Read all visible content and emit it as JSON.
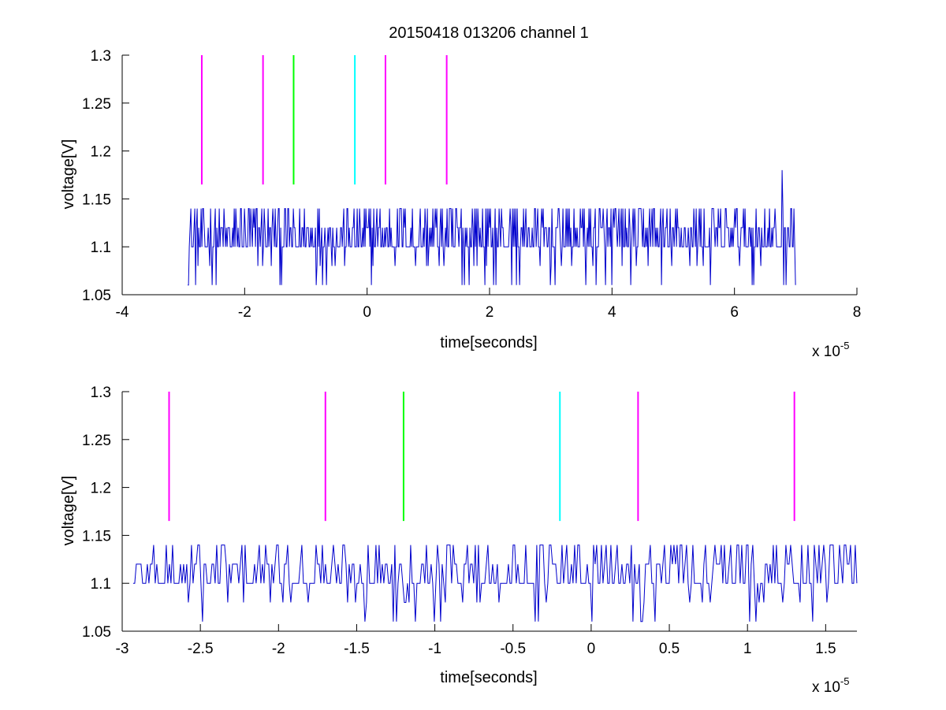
{
  "title": "20150418 013206 channel 1",
  "chart_data": [
    {
      "type": "line",
      "title": "20150418 013206 channel 1",
      "xlabel": "time[seconds]",
      "ylabel": "voltage[V]",
      "x_exponent_label": "x 10",
      "x_exponent": "-5",
      "xlim": [
        -4,
        8
      ],
      "ylim": [
        1.05,
        1.3
      ],
      "xticks": [
        "-4",
        "-2",
        "0",
        "2",
        "4",
        "6",
        "8"
      ],
      "xtick_values": [
        -4,
        -2,
        0,
        2,
        4,
        6,
        8
      ],
      "yticks": [
        "1.05",
        "1.1",
        "1.15",
        "1.2",
        "1.25",
        "1.3"
      ],
      "ytick_values": [
        1.05,
        1.1,
        1.15,
        1.2,
        1.25,
        1.3
      ],
      "grid": false,
      "signal": {
        "color": "#0000cc",
        "x_start": -2.93,
        "x_end": 7.0,
        "baseline": 1.1,
        "levels": [
          1.06,
          1.08,
          1.1,
          1.12,
          1.14
        ],
        "spike": {
          "x": 6.78,
          "y": 1.18
        }
      },
      "markers": [
        {
          "x": -2.7,
          "y_from": 1.165,
          "y_to": 1.3,
          "color": "#ff00ff"
        },
        {
          "x": -1.7,
          "y_from": 1.165,
          "y_to": 1.3,
          "color": "#ff00ff"
        },
        {
          "x": -1.2,
          "y_from": 1.165,
          "y_to": 1.3,
          "color": "#00ff00"
        },
        {
          "x": -0.2,
          "y_from": 1.165,
          "y_to": 1.3,
          "color": "#00ffff"
        },
        {
          "x": 0.3,
          "y_from": 1.165,
          "y_to": 1.3,
          "color": "#ff00ff"
        },
        {
          "x": 1.3,
          "y_from": 1.165,
          "y_to": 1.3,
          "color": "#ff00ff"
        }
      ]
    },
    {
      "type": "line",
      "xlabel": "time[seconds]",
      "ylabel": "voltage[V]",
      "x_exponent_label": "x 10",
      "x_exponent": "-5",
      "xlim": [
        -3.0,
        1.7
      ],
      "ylim": [
        1.05,
        1.3
      ],
      "xticks": [
        "-3",
        "-2.5",
        "-2",
        "-1.5",
        "-1",
        "-0.5",
        "0",
        "0.5",
        "1",
        "1.5"
      ],
      "xtick_values": [
        -3,
        -2.5,
        -2,
        -1.5,
        -1,
        -0.5,
        0,
        0.5,
        1,
        1.5
      ],
      "yticks": [
        "1.05",
        "1.1",
        "1.15",
        "1.2",
        "1.25",
        "1.3"
      ],
      "ytick_values": [
        1.05,
        1.1,
        1.15,
        1.2,
        1.25,
        1.3
      ],
      "grid": false,
      "signal": {
        "color": "#0000cc",
        "x_start": -2.93,
        "x_end": 1.7,
        "baseline": 1.1,
        "levels": [
          1.06,
          1.08,
          1.1,
          1.12,
          1.14
        ]
      },
      "markers": [
        {
          "x": -2.7,
          "y_from": 1.165,
          "y_to": 1.3,
          "color": "#ff00ff"
        },
        {
          "x": -1.7,
          "y_from": 1.165,
          "y_to": 1.3,
          "color": "#ff00ff"
        },
        {
          "x": -1.2,
          "y_from": 1.165,
          "y_to": 1.3,
          "color": "#00ff00"
        },
        {
          "x": -0.2,
          "y_from": 1.165,
          "y_to": 1.3,
          "color": "#00ffff"
        },
        {
          "x": 0.3,
          "y_from": 1.165,
          "y_to": 1.3,
          "color": "#ff00ff"
        },
        {
          "x": 1.3,
          "y_from": 1.165,
          "y_to": 1.3,
          "color": "#ff00ff"
        }
      ]
    }
  ]
}
